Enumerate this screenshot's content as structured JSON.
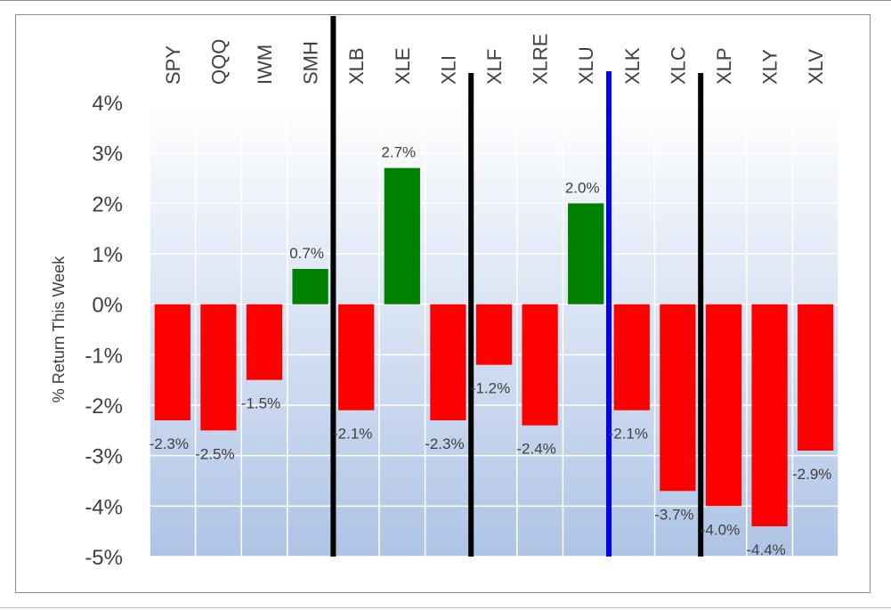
{
  "chart_data": {
    "type": "bar",
    "title": "",
    "xlabel": "",
    "ylabel": "% Return This Week",
    "ylim": [
      -5,
      4
    ],
    "yticks": [
      4,
      3,
      2,
      1,
      0,
      -1,
      -2,
      -3,
      -4,
      -5
    ],
    "ytick_labels": [
      "4%",
      "3%",
      "2%",
      "1%",
      "0%",
      "-1%",
      "-2%",
      "-3%",
      "-4%",
      "-5%"
    ],
    "grid": true,
    "legend": "none",
    "categories": [
      "SPY",
      "QQQ",
      "IWM",
      "SMH",
      "XLB",
      "XLE",
      "XLI",
      "XLF",
      "XLRE",
      "XLU",
      "XLK",
      "XLC",
      "XLP",
      "XLY",
      "XLV"
    ],
    "values": [
      -2.3,
      -2.5,
      -1.5,
      0.7,
      -2.1,
      2.7,
      -2.3,
      -1.2,
      -2.4,
      2.0,
      -2.1,
      -3.7,
      -4.0,
      -4.4,
      -2.9
    ],
    "data_labels": [
      "-2.3%",
      "-2.5%",
      "-1.5%",
      "0.7%",
      "-2.1%",
      "2.7%",
      "-2.3%",
      "-1.2%",
      "-2.4%",
      "2.0%",
      "-2.1%",
      "-3.7%",
      "-4.0%",
      "-4.4%",
      "-2.9%"
    ],
    "positive_color": "#008000",
    "negative_color": "#ff0000",
    "separators": [
      {
        "after_category": "SMH",
        "color": "#000000"
      },
      {
        "after_category": "XLI",
        "color": "#000000"
      },
      {
        "after_category": "XLU",
        "color": "#0000ff"
      },
      {
        "after_category": "XLC",
        "color": "#000000"
      }
    ]
  }
}
